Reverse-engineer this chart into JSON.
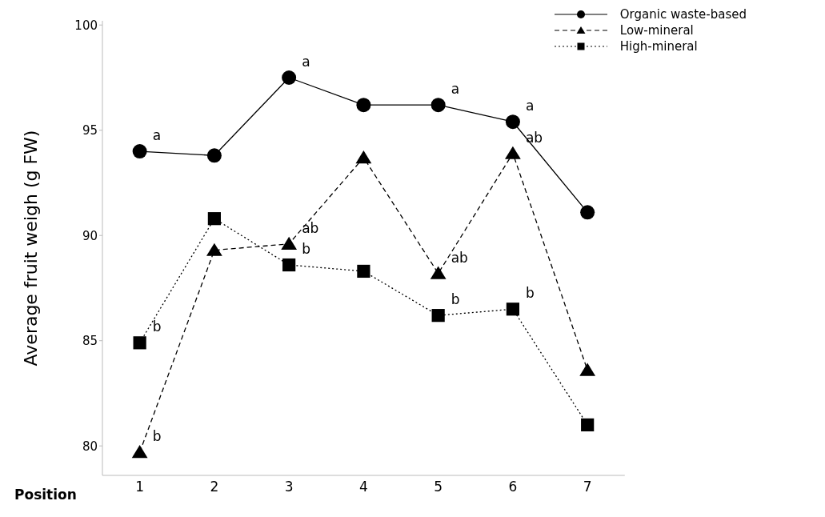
{
  "chart_data": {
    "type": "line",
    "xlabel": "Position",
    "ylabel": "Average fruit weigh (g FW)",
    "x": [
      1,
      2,
      3,
      4,
      5,
      6,
      7
    ],
    "xlim": [
      0.5,
      7.5
    ],
    "xticks": [
      1,
      2,
      3,
      4,
      5,
      6,
      7
    ],
    "ylim": [
      78.6,
      100.2
    ],
    "yticks": [
      80,
      85,
      90,
      95,
      100
    ],
    "grid": false,
    "legend": "top right",
    "series": [
      {
        "name": "Organic waste-based",
        "color": "#000000",
        "marker": "circle",
        "line_style": "solid",
        "values": [
          94.0,
          93.8,
          97.5,
          96.2,
          96.2,
          95.4,
          91.1
        ]
      },
      {
        "name": "Low-mineral",
        "color": "#000000",
        "marker": "triangle",
        "line_style": "dashed",
        "values": [
          79.7,
          89.3,
          89.6,
          93.7,
          88.2,
          93.9,
          83.6
        ]
      },
      {
        "name": "High-mineral",
        "color": "#000000",
        "marker": "square",
        "line_style": "dotted",
        "values": [
          84.9,
          90.8,
          88.6,
          88.3,
          86.2,
          86.5,
          81.0
        ]
      }
    ],
    "annotations": [
      {
        "text": "a",
        "x": 1,
        "y": 94.0
      },
      {
        "text": "a",
        "x": 3,
        "y": 97.5
      },
      {
        "text": "a",
        "x": 5,
        "y": 96.2
      },
      {
        "text": "a",
        "x": 6,
        "y": 95.4
      },
      {
        "text": "b",
        "x": 1,
        "y": 79.7
      },
      {
        "text": "ab",
        "x": 3,
        "y": 89.6
      },
      {
        "text": "ab",
        "x": 5,
        "y": 88.2
      },
      {
        "text": "ab",
        "x": 6,
        "y": 93.9
      },
      {
        "text": "b",
        "x": 1,
        "y": 84.9
      },
      {
        "text": "b",
        "x": 3,
        "y": 88.6
      },
      {
        "text": "b",
        "x": 5,
        "y": 86.2
      },
      {
        "text": "b",
        "x": 6,
        "y": 86.5
      }
    ]
  }
}
